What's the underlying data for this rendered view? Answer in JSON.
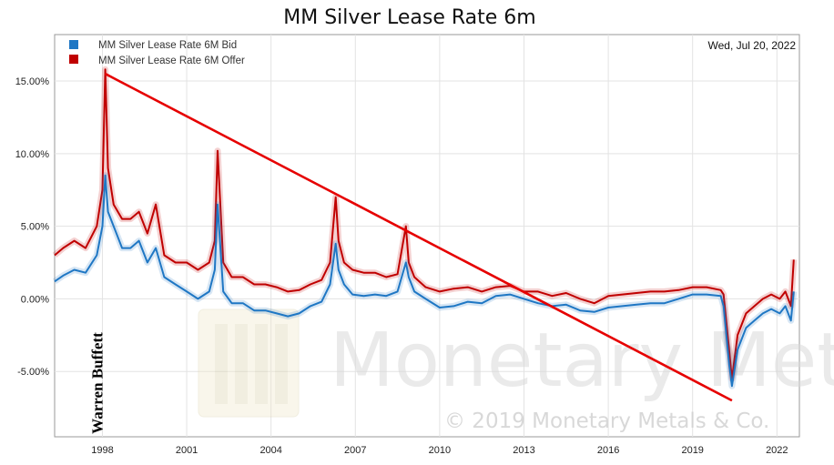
{
  "chart_data": {
    "type": "line",
    "title": "MM Silver Lease Rate 6m",
    "date_label": "Wed, Jul 20, 2022",
    "x_ticks": [
      "1998",
      "2001",
      "2004",
      "2007",
      "2010",
      "2013",
      "2016",
      "2019",
      "2022"
    ],
    "y_ticks": [
      "15.00%",
      "10.00%",
      "5.00%",
      "0.00%",
      "-5.00%"
    ],
    "y_tick_values": [
      15,
      10,
      5,
      0,
      -5
    ],
    "xlim": [
      1996.3,
      2022.8
    ],
    "ylim": [
      -9.5,
      18.2
    ],
    "grid": true,
    "legend_position": "top-left",
    "series": [
      {
        "name": "MM Silver Lease Rate 6M Bid",
        "color": "#1f77c4",
        "x": [
          1996.3,
          1996.6,
          1997.0,
          1997.4,
          1997.8,
          1998.0,
          1998.1,
          1998.2,
          1998.4,
          1998.7,
          1999.0,
          1999.3,
          1999.6,
          1999.9,
          2000.2,
          2000.6,
          2001.0,
          2001.4,
          2001.8,
          2002.0,
          2002.1,
          2002.3,
          2002.6,
          2003.0,
          2003.4,
          2003.8,
          2004.2,
          2004.6,
          2005.0,
          2005.4,
          2005.8,
          2006.1,
          2006.3,
          2006.4,
          2006.6,
          2006.9,
          2007.3,
          2007.7,
          2008.1,
          2008.5,
          2008.8,
          2008.9,
          2009.1,
          2009.5,
          2010.0,
          2010.5,
          2011.0,
          2011.5,
          2012.0,
          2012.5,
          2013.0,
          2013.5,
          2014.0,
          2014.5,
          2015.0,
          2015.5,
          2016.0,
          2016.5,
          2017.0,
          2017.5,
          2018.0,
          2018.5,
          2019.0,
          2019.5,
          2020.0,
          2020.1,
          2020.3,
          2020.4,
          2020.6,
          2020.9,
          2021.2,
          2021.5,
          2021.8,
          2022.1,
          2022.3,
          2022.5,
          2022.6
        ],
        "values": [
          1.2,
          1.6,
          2.0,
          1.8,
          3.0,
          5.0,
          8.5,
          6.0,
          5.0,
          3.5,
          3.5,
          4.0,
          2.5,
          3.5,
          1.5,
          1.0,
          0.5,
          0.0,
          0.5,
          2.0,
          6.5,
          0.5,
          -0.3,
          -0.3,
          -0.8,
          -0.8,
          -1.0,
          -1.2,
          -1.0,
          -0.5,
          -0.2,
          1.0,
          3.8,
          2.0,
          1.0,
          0.3,
          0.2,
          0.3,
          0.2,
          0.5,
          2.5,
          1.5,
          0.5,
          0.0,
          -0.6,
          -0.5,
          -0.2,
          -0.3,
          0.2,
          0.3,
          0.0,
          -0.3,
          -0.5,
          -0.4,
          -0.8,
          -0.9,
          -0.6,
          -0.5,
          -0.4,
          -0.3,
          -0.3,
          0.0,
          0.3,
          0.3,
          0.2,
          -0.5,
          -4.5,
          -6.0,
          -3.5,
          -2.0,
          -1.5,
          -1.0,
          -0.7,
          -1.0,
          -0.5,
          -1.5,
          0.5
        ]
      },
      {
        "name": "MM Silver Lease Rate 6M Offer",
        "color": "#c00000",
        "x": [
          1996.3,
          1996.6,
          1997.0,
          1997.4,
          1997.8,
          1998.0,
          1998.1,
          1998.2,
          1998.4,
          1998.7,
          1999.0,
          1999.3,
          1999.6,
          1999.9,
          2000.2,
          2000.6,
          2001.0,
          2001.4,
          2001.8,
          2002.0,
          2002.1,
          2002.3,
          2002.6,
          2003.0,
          2003.4,
          2003.8,
          2004.2,
          2004.6,
          2005.0,
          2005.4,
          2005.8,
          2006.1,
          2006.3,
          2006.4,
          2006.6,
          2006.9,
          2007.3,
          2007.7,
          2008.1,
          2008.5,
          2008.8,
          2008.9,
          2009.1,
          2009.5,
          2010.0,
          2010.5,
          2011.0,
          2011.5,
          2012.0,
          2012.5,
          2013.0,
          2013.5,
          2014.0,
          2014.5,
          2015.0,
          2015.5,
          2016.0,
          2016.5,
          2017.0,
          2017.5,
          2018.0,
          2018.5,
          2019.0,
          2019.5,
          2020.0,
          2020.1,
          2020.3,
          2020.4,
          2020.6,
          2020.9,
          2021.2,
          2021.5,
          2021.8,
          2022.1,
          2022.3,
          2022.5,
          2022.6
        ],
        "values": [
          3.0,
          3.5,
          4.0,
          3.5,
          5.0,
          7.5,
          15.8,
          9.0,
          6.5,
          5.5,
          5.5,
          6.0,
          4.5,
          6.5,
          3.0,
          2.5,
          2.5,
          2.0,
          2.5,
          4.0,
          10.2,
          2.5,
          1.5,
          1.5,
          1.0,
          1.0,
          0.8,
          0.5,
          0.6,
          1.0,
          1.3,
          2.5,
          7.0,
          4.0,
          2.5,
          2.0,
          1.8,
          1.8,
          1.5,
          1.7,
          5.0,
          2.5,
          1.5,
          0.8,
          0.5,
          0.7,
          0.8,
          0.5,
          0.8,
          0.9,
          0.5,
          0.5,
          0.2,
          0.4,
          0.0,
          -0.3,
          0.2,
          0.3,
          0.4,
          0.5,
          0.5,
          0.6,
          0.8,
          0.8,
          0.6,
          0.3,
          -3.5,
          -5.5,
          -2.5,
          -1.0,
          -0.5,
          0.0,
          0.3,
          0.0,
          0.5,
          -0.5,
          2.7
        ]
      }
    ],
    "annotations": [
      {
        "type": "line",
        "color": "#e60000",
        "x": [
          1998.1,
          2020.4
        ],
        "y": [
          15.5,
          -7.0
        ]
      },
      {
        "type": "text",
        "text": "Warren Buffett",
        "x": 1998.0,
        "y": -9.3,
        "rotation": -90
      }
    ],
    "watermark": {
      "text": "Monetary Metals",
      "copyright": "© 2019 Monetary Metals & Co."
    }
  }
}
